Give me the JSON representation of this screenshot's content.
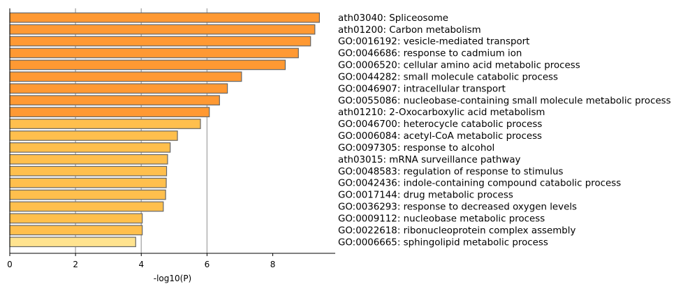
{
  "chart_data": {
    "type": "bar",
    "orientation": "horizontal",
    "xlabel": "-log10(P)",
    "xlim": [
      0,
      9.9
    ],
    "xticks": [
      "0",
      "2",
      "4",
      "6",
      "8"
    ],
    "grid": "vertical lines at 2, 4, 6",
    "categories": [
      "ath03040: Spliceosome",
      "ath01200: Carbon metabolism",
      "GO:0016192: vesicle-mediated transport",
      "GO:0046686: response to cadmium ion",
      "GO:0006520: cellular amino acid metabolic process",
      "GO:0044282: small molecule catabolic process",
      "GO:0046907: intracellular transport",
      "GO:0055086: nucleobase-containing small molecule metabolic process",
      "ath01210: 2-Oxocarboxylic acid metabolism",
      "GO:0046700: heterocycle catabolic process",
      "GO:0006084: acetyl-CoA metabolic process",
      "GO:0097305: response to alcohol",
      "ath03015: mRNA surveillance pathway",
      "GO:0048583: regulation of response to stimulus",
      "GO:0042436: indole-containing compound catabolic process",
      "GO:0017144: drug metabolic process",
      "GO:0036293: response to decreased oxygen levels",
      "GO:0009112: nucleobase metabolic process",
      "GO:0022618: ribonucleoprotein complex assembly",
      "GO:0006665: sphingolipid metabolic process"
    ],
    "values": [
      9.42,
      9.28,
      9.15,
      8.78,
      8.38,
      7.05,
      6.62,
      6.38,
      6.07,
      5.8,
      5.1,
      4.88,
      4.8,
      4.77,
      4.76,
      4.74,
      4.67,
      4.03,
      4.03,
      3.83
    ],
    "colors": {
      "dark_orange": "#ff9933",
      "light_orange": "#ffbf4d",
      "pale_yellow": "#ffe38f",
      "bar_edge": "#666666",
      "grid": "#b0b0b0"
    },
    "bar_color_index": [
      "dark_orange",
      "dark_orange",
      "dark_orange",
      "dark_orange",
      "dark_orange",
      "dark_orange",
      "dark_orange",
      "dark_orange",
      "dark_orange",
      "light_orange",
      "light_orange",
      "light_orange",
      "light_orange",
      "light_orange",
      "light_orange",
      "light_orange",
      "light_orange",
      "light_orange",
      "light_orange",
      "pale_yellow"
    ]
  }
}
